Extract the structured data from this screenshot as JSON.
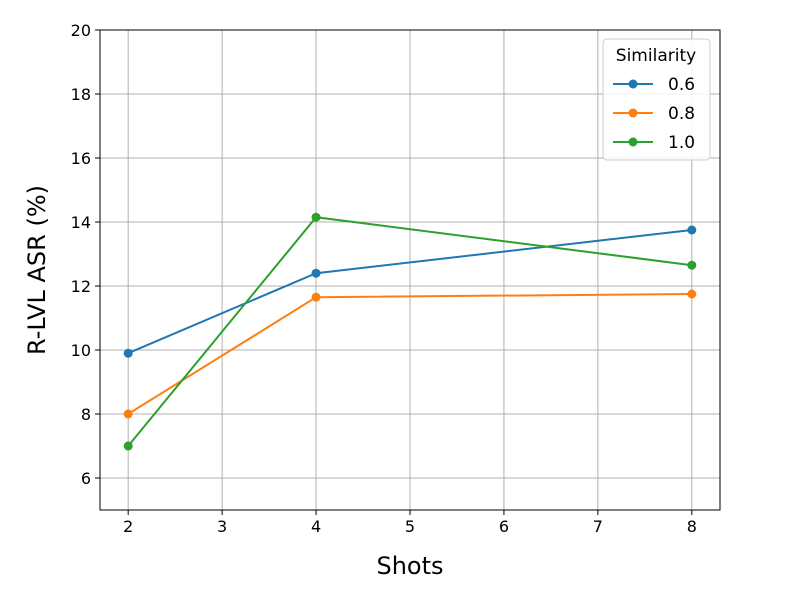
{
  "chart_data": {
    "type": "line",
    "title": "",
    "xlabel": "Shots",
    "ylabel": "R-LVL ASR (%)",
    "xlim": [
      1.7,
      8.3
    ],
    "ylim": [
      5,
      20
    ],
    "xticks": [
      2,
      3,
      4,
      5,
      6,
      7,
      8
    ],
    "yticks": [
      6,
      8,
      10,
      12,
      14,
      16,
      18,
      20
    ],
    "grid": true,
    "legend": {
      "title": "Similarity",
      "placement": "top-right"
    },
    "x": [
      2,
      4,
      8
    ],
    "series": [
      {
        "name": "0.6",
        "color": "#1f77b4",
        "values": [
          9.9,
          12.4,
          13.75
        ]
      },
      {
        "name": "0.8",
        "color": "#ff7f0e",
        "values": [
          8.0,
          11.65,
          11.75
        ]
      },
      {
        "name": "1.0",
        "color": "#2ca02c",
        "values": [
          7.0,
          14.15,
          12.65
        ]
      }
    ]
  }
}
